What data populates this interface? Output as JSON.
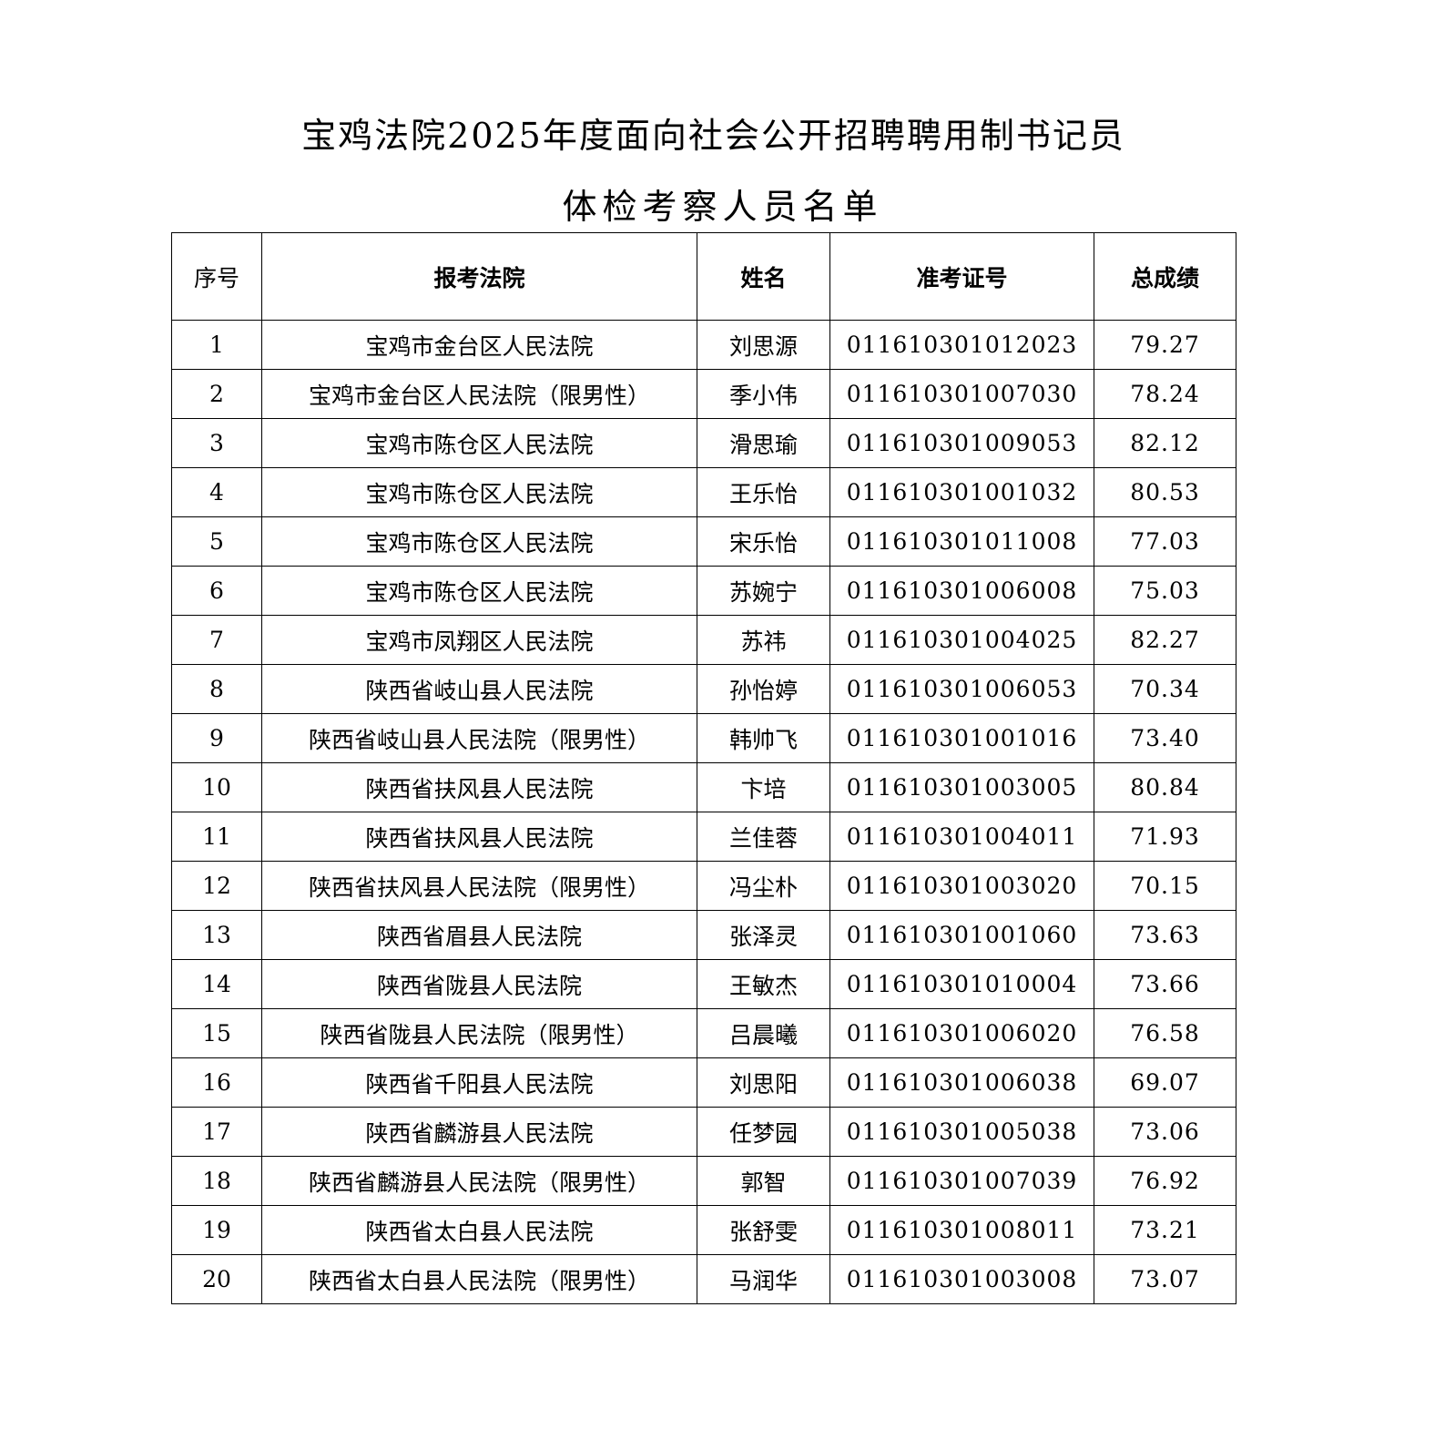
{
  "title": {
    "line1": "宝鸡法院2025年度面向社会公开招聘聘用制书记员",
    "line2": "体检考察人员名单"
  },
  "table": {
    "headers": [
      "序号",
      "报考法院",
      "姓名",
      "准考证号",
      "总成绩"
    ],
    "rows": [
      [
        "1",
        "宝鸡市金台区人民法院",
        "刘思源",
        "011610301012023",
        "79.27"
      ],
      [
        "2",
        "宝鸡市金台区人民法院（限男性）",
        "季小伟",
        "011610301007030",
        "78.24"
      ],
      [
        "3",
        "宝鸡市陈仓区人民法院",
        "滑思瑜",
        "011610301009053",
        "82.12"
      ],
      [
        "4",
        "宝鸡市陈仓区人民法院",
        "王乐怡",
        "011610301001032",
        "80.53"
      ],
      [
        "5",
        "宝鸡市陈仓区人民法院",
        "宋乐怡",
        "011610301011008",
        "77.03"
      ],
      [
        "6",
        "宝鸡市陈仓区人民法院",
        "苏婉宁",
        "011610301006008",
        "75.03"
      ],
      [
        "7",
        "宝鸡市凤翔区人民法院",
        "苏祎",
        "011610301004025",
        "82.27"
      ],
      [
        "8",
        "陕西省岐山县人民法院",
        "孙怡婷",
        "011610301006053",
        "70.34"
      ],
      [
        "9",
        "陕西省岐山县人民法院（限男性）",
        "韩帅飞",
        "011610301001016",
        "73.40"
      ],
      [
        "10",
        "陕西省扶风县人民法院",
        "卞培",
        "011610301003005",
        "80.84"
      ],
      [
        "11",
        "陕西省扶风县人民法院",
        "兰佳蓉",
        "011610301004011",
        "71.93"
      ],
      [
        "12",
        "陕西省扶风县人民法院（限男性）",
        "冯尘朴",
        "011610301003020",
        "70.15"
      ],
      [
        "13",
        "陕西省眉县人民法院",
        "张泽灵",
        "011610301001060",
        "73.63"
      ],
      [
        "14",
        "陕西省陇县人民法院",
        "王敏杰",
        "011610301010004",
        "73.66"
      ],
      [
        "15",
        "陕西省陇县人民法院（限男性）",
        "吕晨曦",
        "011610301006020",
        "76.58"
      ],
      [
        "16",
        "陕西省千阳县人民法院",
        "刘思阳",
        "011610301006038",
        "69.07"
      ],
      [
        "17",
        "陕西省麟游县人民法院",
        "任梦园",
        "011610301005038",
        "73.06"
      ],
      [
        "18",
        "陕西省麟游县人民法院（限男性）",
        "郭智",
        "011610301007039",
        "76.92"
      ],
      [
        "19",
        "陕西省太白县人民法院",
        "张舒雯",
        "011610301008011",
        "73.21"
      ],
      [
        "20",
        "陕西省太白县人民法院（限男性）",
        "马润华",
        "011610301003008",
        "73.07"
      ]
    ]
  }
}
